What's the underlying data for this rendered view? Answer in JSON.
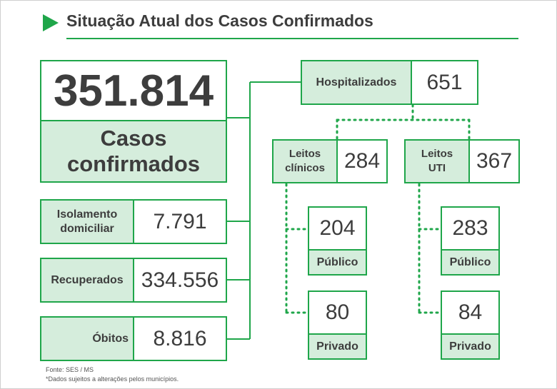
{
  "title": "Situação Atual dos Casos Confirmados",
  "confirmed": {
    "value": "351.814",
    "label_line1": "Casos",
    "label_line2": "confirmados"
  },
  "isolamento": {
    "label_line1": "Isolamento",
    "label_line2": "domiciliar",
    "value": "7.791"
  },
  "recuperados": {
    "label": "Recuperados",
    "value": "334.556"
  },
  "obitos": {
    "label": "Óbitos",
    "value": "8.816"
  },
  "hospitalizados": {
    "label": "Hospitalizados",
    "value": "651"
  },
  "leitos_clinicos": {
    "label_line1": "Leitos",
    "label_line2": "clínicos",
    "value": "284",
    "publico": {
      "value": "204",
      "label": "Público"
    },
    "privado": {
      "value": "80",
      "label": "Privado"
    }
  },
  "leitos_uti": {
    "label_line1": "Leitos",
    "label_line2": "UTI",
    "value": "367",
    "publico": {
      "value": "283",
      "label": "Público"
    },
    "privado": {
      "value": "84",
      "label": "Privado"
    }
  },
  "footer": {
    "source": "Fonte: SES / MS",
    "note": "*Dados sujeitos a alterações pelos municípios."
  },
  "colors": {
    "accent": "#1fa64a",
    "label_bg": "#d5eddc",
    "text": "#3d3d3d"
  }
}
